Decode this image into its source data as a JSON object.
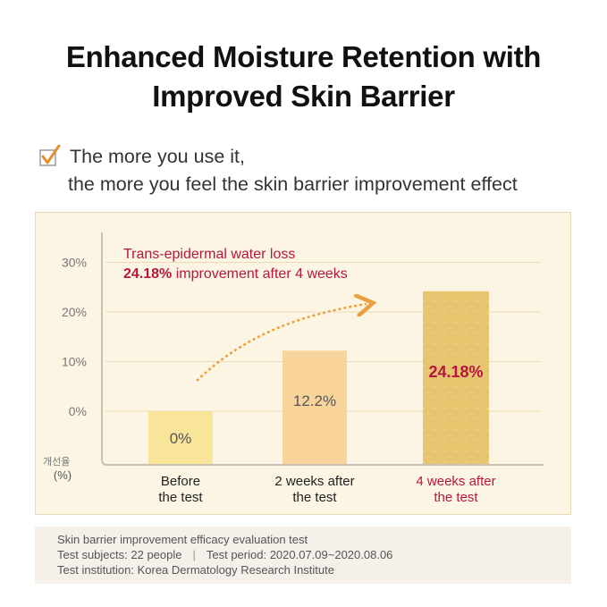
{
  "title_lines": [
    "Enhanced Moisture Retention with",
    "Improved Skin Barrier"
  ],
  "claim_lines": [
    "The more you use it,",
    "the more you feel the skin barrier improvement effect"
  ],
  "icons": {
    "check": "check-icon"
  },
  "colors": {
    "accent": "#b5173f",
    "check": "#e2902a",
    "panel_bg": "#fdf5e3",
    "bar_before": "#f8e59a",
    "bar_2w": "#f8d49b",
    "bar_4w": "#e8c46f",
    "arrow": "#e8a040"
  },
  "chart_data": {
    "type": "bar",
    "categories": [
      [
        "Before",
        "the test"
      ],
      [
        "2 weeks after",
        "the test"
      ],
      [
        "4 weeks after",
        "the test"
      ]
    ],
    "values": [
      0,
      12.2,
      24.18
    ],
    "value_labels": [
      "0%",
      "12.2%",
      "24.18%"
    ],
    "yticks": [
      "30%",
      "20%",
      "10%",
      "0%"
    ],
    "ytick_values": [
      30,
      20,
      10,
      0
    ],
    "ylabel_korean": "개선율",
    "ylabel_unit": "(%)",
    "annotation_line1": "Trans-epidermal water loss",
    "annotation_highlight": "24.18%",
    "annotation_rest": " improvement after 4 weeks",
    "highlight_index": 2
  },
  "footer": {
    "line1": "Skin barrier improvement efficacy evaluation test",
    "subjects": "Test subjects: 22 people",
    "separator": "|",
    "period": "Test period: 2020.07.09~2020.08.06",
    "institution": "Test institution: Korea Dermatology Research Institute"
  }
}
